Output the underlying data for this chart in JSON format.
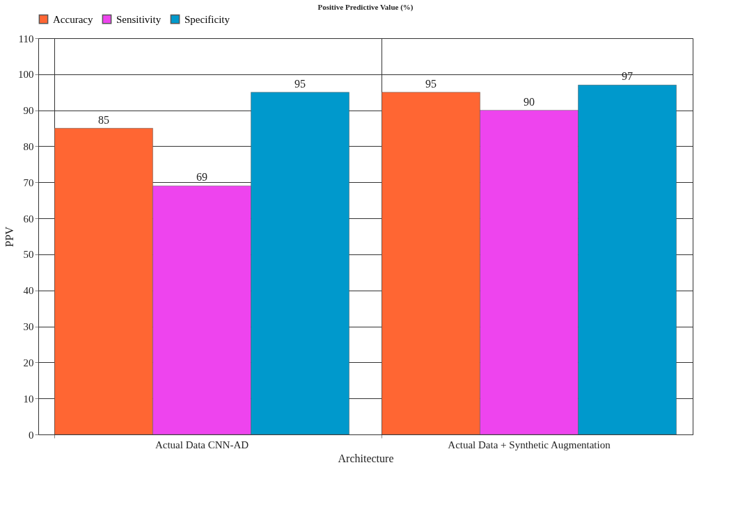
{
  "chart_data": {
    "type": "bar",
    "title": "Positive Predictive Value (%)",
    "xlabel": "Architecture",
    "ylabel": "PPV",
    "categories": [
      "Actual Data CNN-AD",
      "Actual Data + Synthetic Augmentation"
    ],
    "series": [
      {
        "name": "Accuracy",
        "color": "#ff6633",
        "values": [
          85,
          95
        ]
      },
      {
        "name": "Sensitivity",
        "color": "#ee44ee",
        "values": [
          69,
          90
        ]
      },
      {
        "name": "Specificity",
        "color": "#0099cc",
        "values": [
          95,
          97
        ]
      }
    ],
    "ylim": [
      0,
      110
    ],
    "yticks": [
      0,
      10,
      20,
      30,
      40,
      50,
      60,
      70,
      80,
      90,
      100,
      110
    ],
    "grid": true,
    "legend": "top left",
    "data_labels": true
  }
}
